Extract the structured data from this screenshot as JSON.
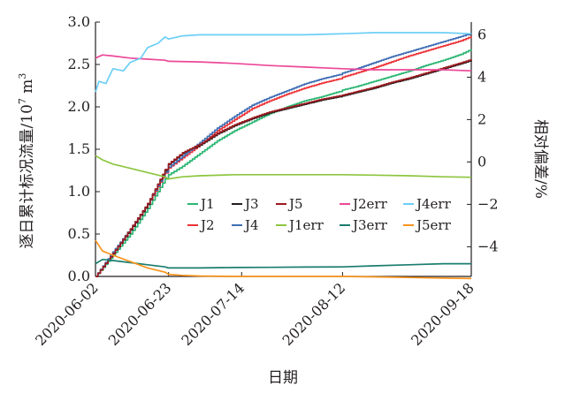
{
  "chart_data": {
    "type": "line",
    "ylabel_left": "逐日累计标况流量/10",
    "ylabel_left_exp": "7",
    "ylabel_left_unit": " m",
    "ylabel_left_unit_exp": "3",
    "ylabel_right": "相对偏差/%",
    "xlabel": "日期",
    "ylim_left": [
      0,
      3.0
    ],
    "ylim_right": [
      -5.4,
      6.6
    ],
    "y_left_ticks": [
      "0.0",
      "0.5",
      "1.0",
      "1.5",
      "2.0",
      "2.5",
      "3.0"
    ],
    "y_right_ticks": [
      "−4",
      "−2",
      "0",
      "2",
      "4",
      "6"
    ],
    "x_ticks": [
      "2020-06-02",
      "2020-06-23",
      "2020-07-14",
      "2020-08-12",
      "2020-09-18"
    ],
    "x_tick_days": [
      0,
      21,
      42,
      71,
      108
    ],
    "xlim_days": [
      0,
      108
    ],
    "grid": false,
    "legend_position": "center",
    "series": [
      {
        "name": "J1",
        "axis": "left",
        "color": "#2bb673",
        "x": [
          0,
          5,
          10,
          15,
          20,
          21,
          25,
          30,
          35,
          40,
          45,
          50,
          55,
          60,
          65,
          70,
          71,
          75,
          80,
          85,
          90,
          95,
          100,
          105,
          108
        ],
        "y": [
          0.0,
          0.25,
          0.5,
          0.8,
          1.15,
          1.2,
          1.3,
          1.45,
          1.6,
          1.72,
          1.82,
          1.92,
          2.0,
          2.07,
          2.12,
          2.18,
          2.2,
          2.24,
          2.3,
          2.36,
          2.42,
          2.49,
          2.55,
          2.62,
          2.68
        ]
      },
      {
        "name": "J2",
        "axis": "left",
        "color": "#ed3237",
        "x": [
          0,
          5,
          10,
          15,
          20,
          21,
          25,
          30,
          35,
          40,
          45,
          50,
          55,
          60,
          65,
          70,
          71,
          75,
          80,
          85,
          90,
          95,
          100,
          105,
          108
        ],
        "y": [
          0.0,
          0.28,
          0.55,
          0.85,
          1.22,
          1.28,
          1.4,
          1.55,
          1.72,
          1.85,
          1.98,
          2.07,
          2.15,
          2.22,
          2.28,
          2.33,
          2.35,
          2.4,
          2.46,
          2.53,
          2.6,
          2.66,
          2.72,
          2.78,
          2.83
        ]
      },
      {
        "name": "J3",
        "axis": "left",
        "color": "#231f20",
        "x": [
          0,
          5,
          10,
          15,
          20,
          21,
          25,
          30,
          35,
          40,
          45,
          50,
          55,
          60,
          65,
          70,
          71,
          75,
          80,
          85,
          90,
          95,
          100,
          105,
          108
        ],
        "y": [
          0.0,
          0.27,
          0.55,
          0.85,
          1.25,
          1.32,
          1.45,
          1.55,
          1.68,
          1.78,
          1.86,
          1.93,
          1.98,
          2.03,
          2.08,
          2.12,
          2.13,
          2.17,
          2.22,
          2.28,
          2.33,
          2.39,
          2.45,
          2.51,
          2.55
        ]
      },
      {
        "name": "J4",
        "axis": "left",
        "color": "#3f6db4",
        "x": [
          0,
          5,
          10,
          15,
          20,
          21,
          25,
          30,
          35,
          40,
          45,
          50,
          55,
          60,
          65,
          70,
          71,
          75,
          80,
          85,
          90,
          95,
          100,
          105,
          108
        ],
        "y": [
          0.0,
          0.29,
          0.56,
          0.86,
          1.23,
          1.29,
          1.42,
          1.58,
          1.75,
          1.89,
          2.02,
          2.11,
          2.19,
          2.27,
          2.33,
          2.38,
          2.4,
          2.45,
          2.52,
          2.59,
          2.65,
          2.71,
          2.77,
          2.83,
          2.87
        ]
      },
      {
        "name": "J5",
        "axis": "left",
        "color": "#9b1b1f",
        "x": [
          0,
          5,
          10,
          15,
          20,
          21,
          25,
          30,
          35,
          40,
          45,
          50,
          55,
          60,
          65,
          70,
          71,
          75,
          80,
          85,
          90,
          95,
          100,
          105,
          108
        ],
        "y": [
          0.0,
          0.27,
          0.56,
          0.86,
          1.26,
          1.33,
          1.46,
          1.56,
          1.69,
          1.79,
          1.87,
          1.94,
          1.99,
          2.04,
          2.09,
          2.13,
          2.14,
          2.18,
          2.23,
          2.29,
          2.34,
          2.4,
          2.46,
          2.52,
          2.56
        ]
      },
      {
        "name": "J1err",
        "axis": "right",
        "color": "#8dc63f",
        "x": [
          0,
          2,
          5,
          10,
          15,
          20,
          21,
          25,
          30,
          40,
          50,
          60,
          71,
          80,
          90,
          100,
          108
        ],
        "y": [
          0.3,
          0.1,
          -0.1,
          -0.3,
          -0.5,
          -0.7,
          -0.8,
          -0.7,
          -0.65,
          -0.6,
          -0.6,
          -0.6,
          -0.6,
          -0.62,
          -0.65,
          -0.7,
          -0.72
        ]
      },
      {
        "name": "J2err",
        "axis": "right",
        "color": "#ec4899",
        "x": [
          0,
          2,
          5,
          10,
          15,
          20,
          21,
          30,
          40,
          50,
          60,
          71,
          80,
          90,
          100,
          108
        ],
        "y": [
          4.9,
          5.05,
          5.0,
          4.9,
          4.85,
          4.8,
          4.75,
          4.72,
          4.65,
          4.55,
          4.48,
          4.4,
          4.35,
          4.35,
          4.35,
          4.3
        ]
      },
      {
        "name": "J3err",
        "axis": "right",
        "color": "#1b7d6f",
        "x": [
          0,
          2,
          5,
          10,
          15,
          20,
          21,
          30,
          40,
          50,
          60,
          71,
          80,
          90,
          100,
          108
        ],
        "y": [
          -4.8,
          -4.6,
          -4.65,
          -4.75,
          -4.85,
          -4.95,
          -5.0,
          -5.0,
          -4.98,
          -4.97,
          -4.96,
          -4.95,
          -4.9,
          -4.85,
          -4.8,
          -4.8
        ]
      },
      {
        "name": "J4err",
        "axis": "right",
        "color": "#6dcff6",
        "x": [
          0,
          1,
          3,
          5,
          8,
          10,
          13,
          15,
          18,
          20,
          21,
          25,
          30,
          40,
          50,
          60,
          71,
          80,
          90,
          100,
          108
        ],
        "y": [
          3.3,
          3.8,
          3.7,
          4.4,
          4.3,
          4.7,
          4.9,
          5.4,
          5.6,
          5.9,
          5.8,
          5.95,
          6.0,
          6.0,
          6.0,
          6.0,
          6.05,
          6.1,
          6.1,
          6.1,
          6.05
        ]
      },
      {
        "name": "J5err",
        "axis": "right",
        "color": "#f7941d",
        "x": [
          0,
          2,
          5,
          10,
          15,
          20,
          21,
          25,
          30,
          40,
          50,
          60,
          71,
          80,
          90,
          100,
          108
        ],
        "y": [
          -3.7,
          -4.2,
          -4.4,
          -4.7,
          -5.0,
          -5.2,
          -5.3,
          -5.35,
          -5.38,
          -5.4,
          -5.4,
          -5.4,
          -5.4,
          -5.42,
          -5.45,
          -5.48,
          -5.5
        ]
      }
    ]
  }
}
